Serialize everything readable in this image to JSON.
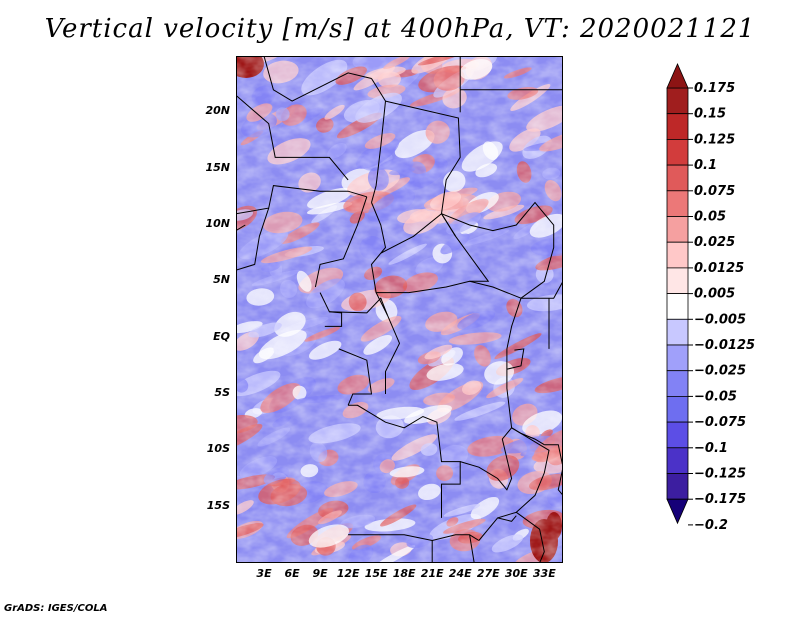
{
  "title": "Vertical velocity [m/s] at 400hPa, VT: 2020021121",
  "credit": "GrADS: IGES/COLA",
  "colors": {
    "background": "#ffffff",
    "border": "#000000",
    "colorbar": [
      "#150078",
      "#3c1ea0",
      "#4b32c8",
      "#5c4ee6",
      "#6e6ef0",
      "#8282f5",
      "#a0a0fa",
      "#c8c8ff",
      "#ffffff",
      "#ffe6e6",
      "#ffc8c8",
      "#f5a0a0",
      "#ec7878",
      "#e05a5a",
      "#d23c3c",
      "#be2828",
      "#a01e1e",
      "#8c1414"
    ]
  },
  "chart_data": {
    "type": "heatmap",
    "title": "Vertical velocity [m/s] at 400hPa, VT: 2020021121",
    "variable": "Vertical velocity",
    "units": "m/s",
    "level": "400hPa",
    "valid_time": "2020021121",
    "xlim": [
      0,
      35
    ],
    "ylim": [
      -20,
      25
    ],
    "x_ticks": [
      {
        "value": 3,
        "label": "3E"
      },
      {
        "value": 6,
        "label": "6E"
      },
      {
        "value": 9,
        "label": "9E"
      },
      {
        "value": 12,
        "label": "12E"
      },
      {
        "value": 15,
        "label": "15E"
      },
      {
        "value": 18,
        "label": "18E"
      },
      {
        "value": 21,
        "label": "21E"
      },
      {
        "value": 24,
        "label": "24E"
      },
      {
        "value": 27,
        "label": "27E"
      },
      {
        "value": 30,
        "label": "30E"
      },
      {
        "value": 33,
        "label": "33E"
      }
    ],
    "y_ticks": [
      {
        "value": 20,
        "label": "20N"
      },
      {
        "value": 15,
        "label": "15N"
      },
      {
        "value": 10,
        "label": "10N"
      },
      {
        "value": 5,
        "label": "5N"
      },
      {
        "value": 0,
        "label": "EQ"
      },
      {
        "value": -5,
        "label": "5S"
      },
      {
        "value": -10,
        "label": "10S"
      },
      {
        "value": -15,
        "label": "15S"
      }
    ],
    "colorbar_levels": [
      "0.175",
      "0.15",
      "0.125",
      "0.1",
      "0.075",
      "0.05",
      "0.025",
      "0.0125",
      "0.005",
      "-0.005",
      "-0.0125",
      "-0.025",
      "-0.05",
      "-0.075",
      "-0.1",
      "-0.125",
      "-0.175",
      "-0.2"
    ],
    "legend_placement": "right",
    "grid": false
  }
}
